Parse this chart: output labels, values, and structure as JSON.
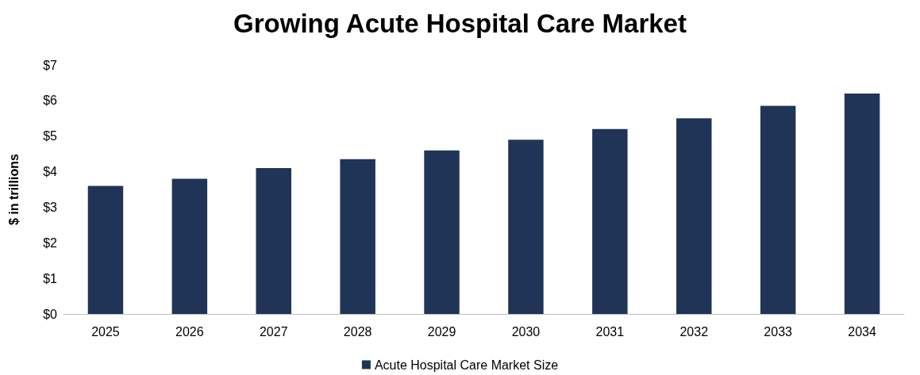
{
  "chart_data": {
    "type": "bar",
    "title": "Growing Acute Hospital Care Market",
    "ylabel": "$ in trillions",
    "categories": [
      "2025",
      "2026",
      "2027",
      "2028",
      "2029",
      "2030",
      "2031",
      "2032",
      "2033",
      "2034"
    ],
    "series": [
      {
        "name": "Acute Hospital Care Market Size",
        "color": "#1f3457",
        "values": [
          3.6,
          3.8,
          4.1,
          4.35,
          4.6,
          4.9,
          5.2,
          5.5,
          5.85,
          6.2
        ]
      }
    ],
    "ylim": [
      0,
      7
    ],
    "yticks": [
      {
        "value": 0,
        "label": "$0"
      },
      {
        "value": 1,
        "label": "$1"
      },
      {
        "value": 2,
        "label": "$2"
      },
      {
        "value": 3,
        "label": "$3"
      },
      {
        "value": 4,
        "label": "$4"
      },
      {
        "value": 5,
        "label": "$5"
      },
      {
        "value": 6,
        "label": "$6"
      },
      {
        "value": 7,
        "label": "$7"
      }
    ],
    "grid": false,
    "legend": "bottom"
  }
}
